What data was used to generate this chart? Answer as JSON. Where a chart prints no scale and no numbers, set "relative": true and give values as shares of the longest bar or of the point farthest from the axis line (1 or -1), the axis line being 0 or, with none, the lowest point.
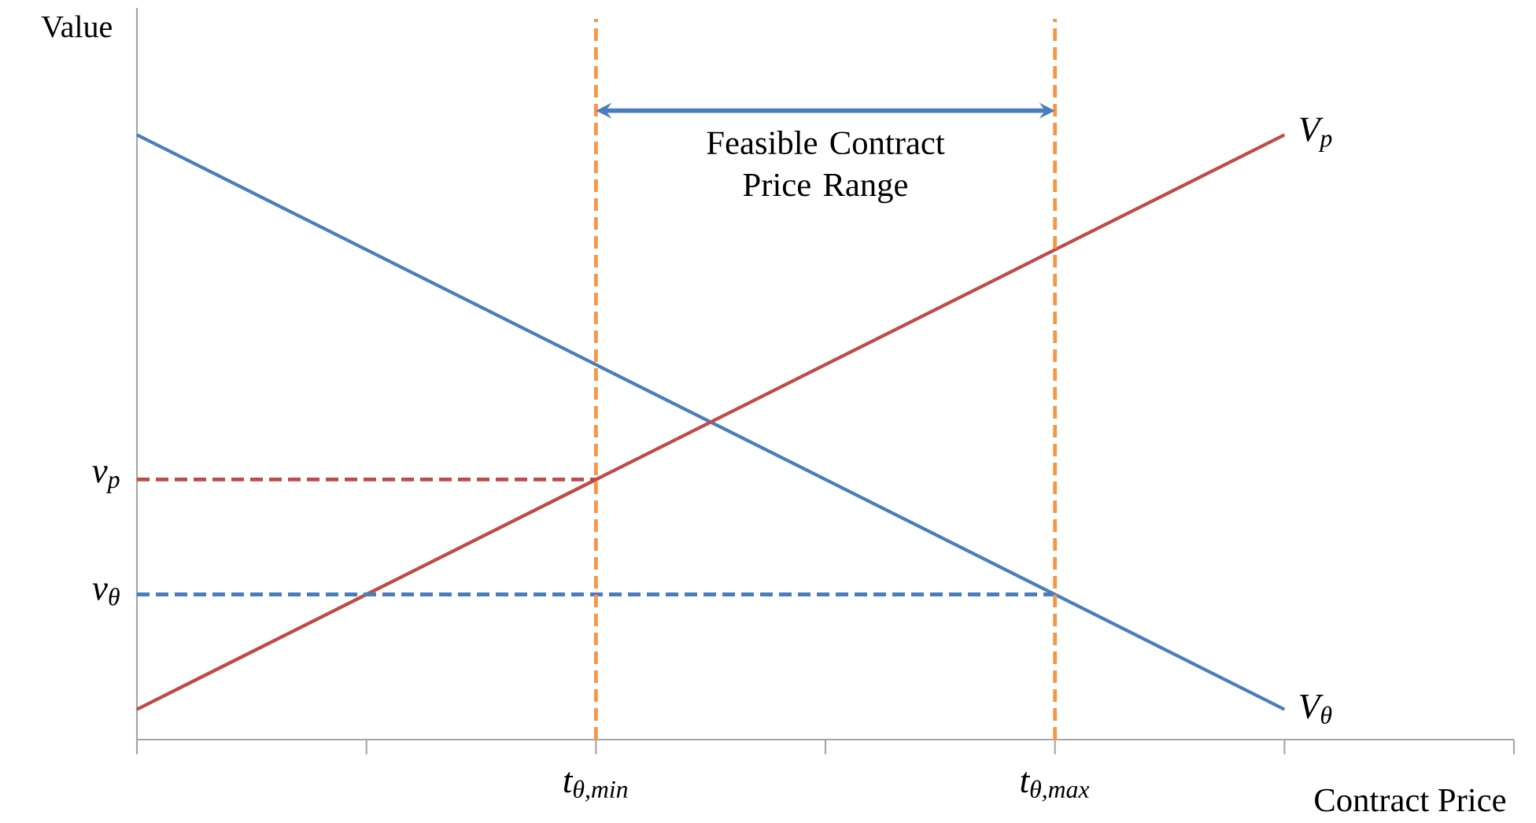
{
  "chart_data": {
    "type": "line",
    "relative": true,
    "xlabel": "Contract Price",
    "ylabel": "Value",
    "categories": [
      null,
      null,
      null,
      null,
      null,
      null,
      null
    ],
    "grid": false,
    "marker": "none",
    "series": [
      {
        "name": "V$_{θ}$",
        "color": "#4a7ebb",
        "values": [
          1.0,
          0.81,
          0.62,
          0.43,
          0.24,
          0.05,
          null
        ],
        "line_style": "solid"
      },
      {
        "name": "V$_{p}$",
        "color": "#be4b48",
        "values": [
          0.05,
          0.24,
          0.43,
          0.62,
          0.81,
          1.0,
          null
        ],
        "line_style": "solid"
      },
      {
        "name": "v$_{p}$",
        "color": "#be4b48",
        "values": [
          0.43,
          0.43,
          0.43,
          null,
          null,
          null,
          null
        ],
        "line_style": "dashed"
      },
      {
        "name": "v$_{θ}$",
        "color": "#4a7ebb",
        "values": [
          0.24,
          0.24,
          0.24,
          0.24,
          0.24,
          null,
          null
        ],
        "line_style": "dashed"
      }
    ],
    "annotations": [
      "Feasible Contract Price Range",
      "t$_{θ,min}$",
      "t$_{θ,max}$"
    ]
  }
}
